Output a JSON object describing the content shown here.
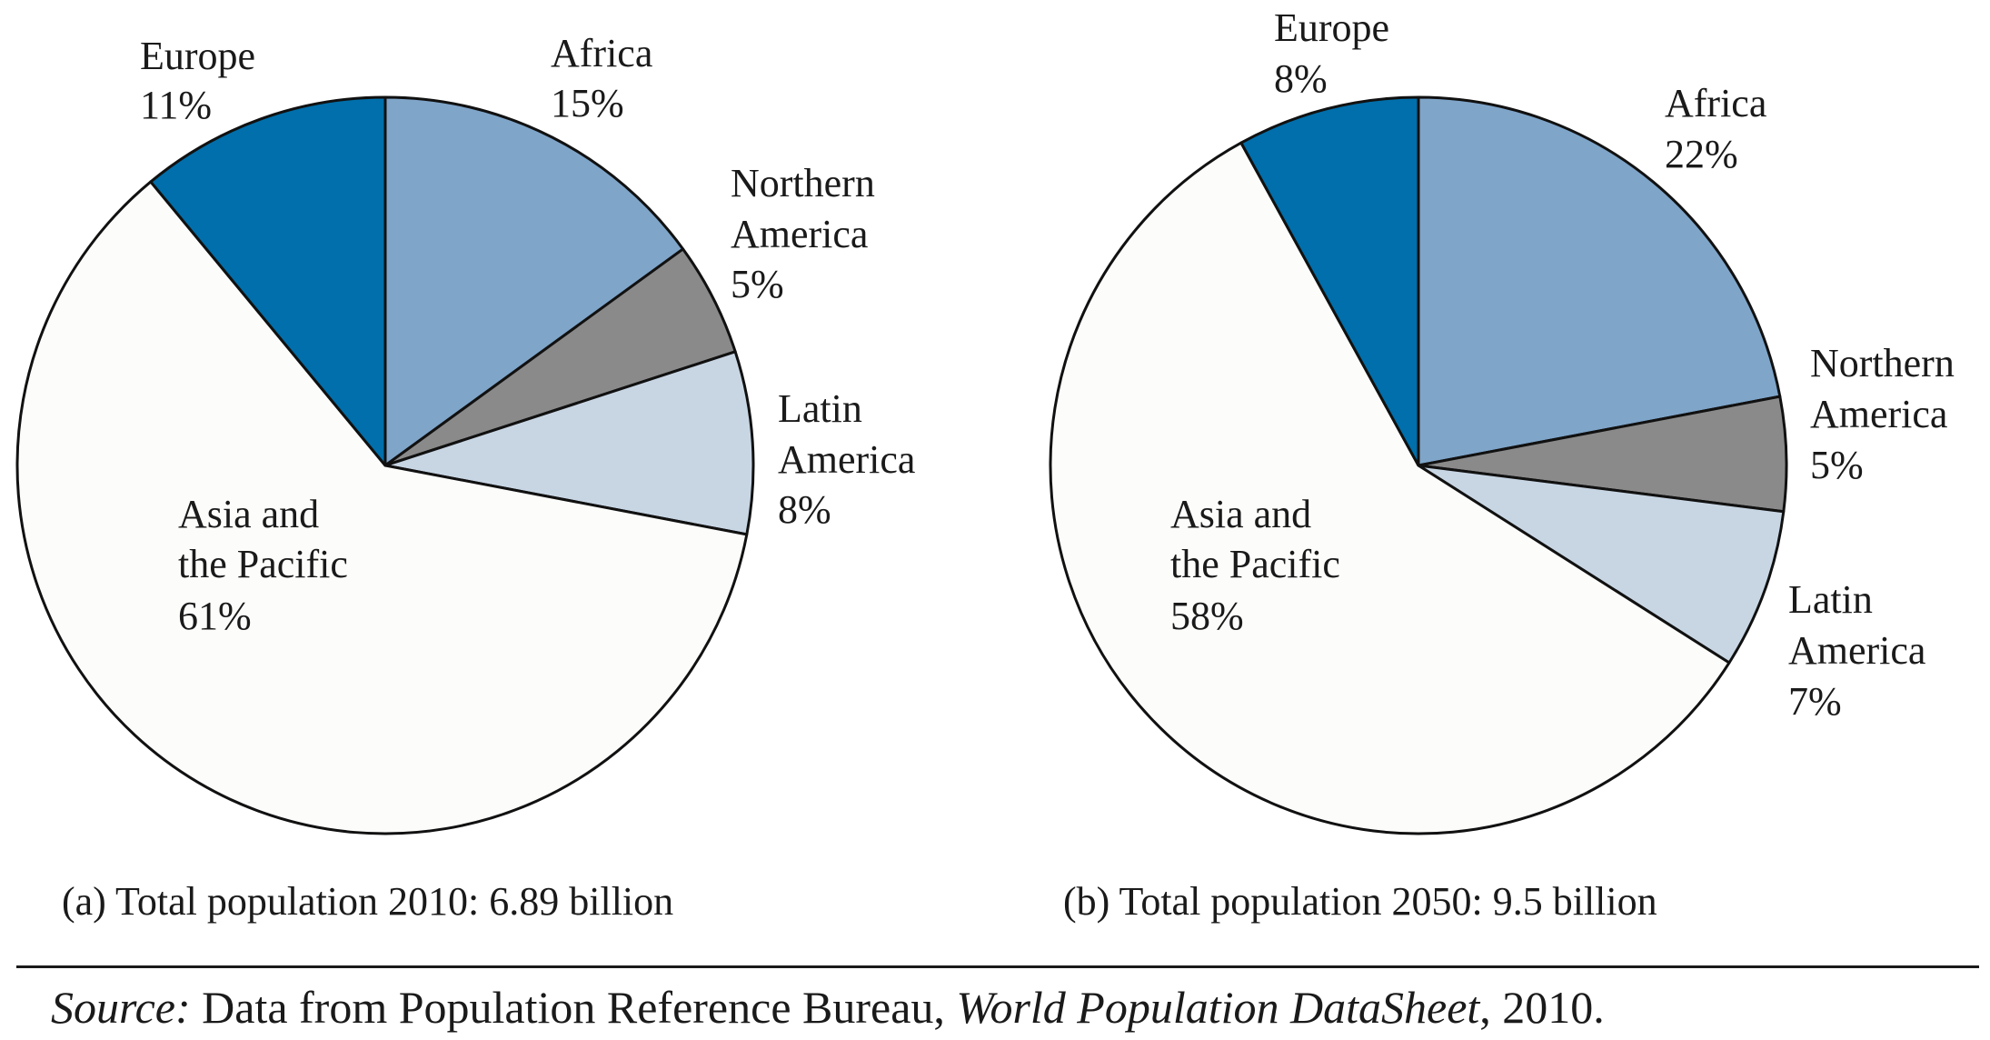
{
  "chart_data": [
    {
      "type": "pie",
      "caption": "(a) Total population 2010: 6.89 billion",
      "slices": [
        {
          "region": "Africa",
          "percent_label": "15%",
          "value": 15,
          "color": "#7fa5c9"
        },
        {
          "region": "Northern America",
          "percent_label": "5%",
          "value": 5,
          "color": "#8a8a8a"
        },
        {
          "region": "Latin America",
          "percent_label": "8%",
          "value": 8,
          "color": "#c8d6e4"
        },
        {
          "region": "Asia and the Pacific",
          "percent_label": "61%",
          "value": 61,
          "color": "#fcfcfb"
        },
        {
          "region": "Europe",
          "percent_label": "11%",
          "value": 11,
          "color": "#006fab"
        }
      ],
      "start": "12 o'clock",
      "direction": "clockwise"
    },
    {
      "type": "pie",
      "caption": "(b) Total population 2050: 9.5 billion",
      "slices": [
        {
          "region": "Africa",
          "percent_label": "22%",
          "value": 22,
          "color": "#7fa5c9"
        },
        {
          "region": "Northern America",
          "percent_label": "5%",
          "value": 5,
          "color": "#8a8a8a"
        },
        {
          "region": "Latin America",
          "percent_label": "7%",
          "value": 7,
          "color": "#c8d6e4"
        },
        {
          "region": "Asia and the Pacific",
          "percent_label": "58%",
          "value": 58,
          "color": "#fcfcfb"
        },
        {
          "region": "Europe",
          "percent_label": "8%",
          "value": 8,
          "color": "#006fab"
        }
      ],
      "start": "12 o'clock",
      "direction": "clockwise"
    }
  ],
  "labels": {
    "a": {
      "africa": [
        "Africa",
        "15%"
      ],
      "northern_america": [
        "Northern",
        "America",
        "5%"
      ],
      "latin_america": [
        "Latin",
        "America",
        "8%"
      ],
      "asia": [
        "Asia and",
        "the Pacific",
        "61%"
      ],
      "europe": [
        "Europe",
        "11%"
      ]
    },
    "b": {
      "africa": [
        "Africa",
        "22%"
      ],
      "northern_america": [
        "Northern",
        "America",
        "5%"
      ],
      "latin_america": [
        "Latin",
        "America",
        "7%"
      ],
      "asia": [
        "Asia and",
        "the Pacific",
        "58%"
      ],
      "europe": [
        "Europe",
        "8%"
      ]
    }
  },
  "source": {
    "prefix": "Source:",
    "text1": " Data from Population Reference Bureau, ",
    "title": "World Population DataSheet",
    "text2": ", 2010."
  }
}
